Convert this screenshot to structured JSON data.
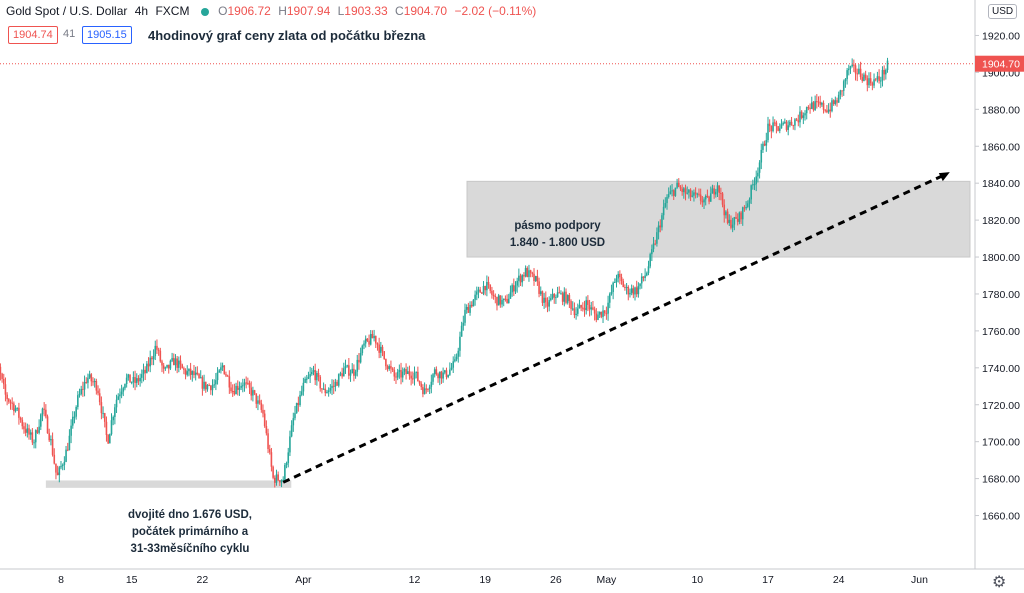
{
  "header": {
    "symbol": "Gold Spot / U.S. Dollar",
    "interval": "4h",
    "exchange": "FXCM",
    "open_label": "O",
    "open": "1906.72",
    "high_label": "H",
    "high": "1907.94",
    "low_label": "L",
    "low": "1903.33",
    "close_label": "C",
    "close": "1904.70",
    "change": "−2.02 (−0.11%)"
  },
  "quotes": {
    "sell": "1904.74",
    "spread": "41",
    "buy": "1905.15"
  },
  "subtitle": "4hodinový graf ceny zlata od počátku března",
  "currency_button": "USD",
  "colors": {
    "up": "#26a69a",
    "down": "#ef5350",
    "zone": "#d9d9d9",
    "price_line": "#ef5350"
  },
  "chart_data": {
    "type": "candlestick",
    "ylim": [
      1640,
      1930
    ],
    "y_ticks": [
      "1660.00",
      "1680.00",
      "1700.00",
      "1720.00",
      "1740.00",
      "1760.00",
      "1780.00",
      "1800.00",
      "1820.00",
      "1840.00",
      "1860.00",
      "1880.00",
      "1900.00",
      "1920.00"
    ],
    "x_ticks": [
      {
        "label": "8",
        "day": 8
      },
      {
        "label": "15",
        "day": 15
      },
      {
        "label": "22",
        "day": 22
      },
      {
        "label": "Apr",
        "day": 32
      },
      {
        "label": "12",
        "day": 43
      },
      {
        "label": "19",
        "day": 50
      },
      {
        "label": "26",
        "day": 57
      },
      {
        "label": "May",
        "day": 62
      },
      {
        "label": "10",
        "day": 71
      },
      {
        "label": "17",
        "day": 78
      },
      {
        "label": "24",
        "day": 85
      },
      {
        "label": "Jun",
        "day": 93
      }
    ],
    "last_price": "1904.70",
    "price_path": [
      [
        1.0,
        1728
      ],
      [
        1.8,
        1740
      ],
      [
        2.5,
        1725
      ],
      [
        3.5,
        1718
      ],
      [
        4.3,
        1708
      ],
      [
        5.3,
        1700
      ],
      [
        6.2,
        1718
      ],
      [
        7.0,
        1700
      ],
      [
        7.6,
        1680
      ],
      [
        8.6,
        1696
      ],
      [
        9.6,
        1722
      ],
      [
        10.6,
        1735
      ],
      [
        11.6,
        1730
      ],
      [
        12.6,
        1700
      ],
      [
        13.4,
        1722
      ],
      [
        14.4,
        1734
      ],
      [
        15.4,
        1732
      ],
      [
        16.4,
        1738
      ],
      [
        17.4,
        1752
      ],
      [
        18.2,
        1737
      ],
      [
        19.2,
        1744
      ],
      [
        20.2,
        1738
      ],
      [
        21.2,
        1736
      ],
      [
        22.2,
        1730
      ],
      [
        23.2,
        1731
      ],
      [
        24.0,
        1741
      ],
      [
        25.0,
        1728
      ],
      [
        26.0,
        1732
      ],
      [
        27.0,
        1726
      ],
      [
        28.0,
        1715
      ],
      [
        29.0,
        1680
      ],
      [
        30.0,
        1680
      ],
      [
        31.0,
        1712
      ],
      [
        32.0,
        1730
      ],
      [
        33.0,
        1738
      ],
      [
        34.0,
        1727
      ],
      [
        35.0,
        1730
      ],
      [
        36.0,
        1739
      ],
      [
        37.0,
        1738
      ],
      [
        38.0,
        1752
      ],
      [
        39.0,
        1757
      ],
      [
        40.0,
        1745
      ],
      [
        41.0,
        1735
      ],
      [
        42.0,
        1737
      ],
      [
        43.0,
        1737
      ],
      [
        44.0,
        1727
      ],
      [
        45.0,
        1738
      ],
      [
        46.0,
        1736
      ],
      [
        47.0,
        1742
      ],
      [
        48.0,
        1770
      ],
      [
        49.0,
        1778
      ],
      [
        50.0,
        1785
      ],
      [
        51.0,
        1777
      ],
      [
        52.0,
        1775
      ],
      [
        53.0,
        1786
      ],
      [
        54.0,
        1792
      ],
      [
        55.0,
        1787
      ],
      [
        56.0,
        1773
      ],
      [
        57.0,
        1780
      ],
      [
        58.0,
        1778
      ],
      [
        59.0,
        1770
      ],
      [
        60.0,
        1775
      ],
      [
        61.0,
        1768
      ],
      [
        62.0,
        1772
      ],
      [
        63.0,
        1790
      ],
      [
        64.0,
        1782
      ],
      [
        65.0,
        1782
      ],
      [
        66.0,
        1792
      ],
      [
        67.0,
        1812
      ],
      [
        68.0,
        1832
      ],
      [
        69.0,
        1838
      ],
      [
        70.0,
        1834
      ],
      [
        71.0,
        1832
      ],
      [
        72.0,
        1830
      ],
      [
        73.0,
        1840
      ],
      [
        74.0,
        1818
      ],
      [
        75.0,
        1820
      ],
      [
        76.0,
        1830
      ],
      [
        77.0,
        1848
      ],
      [
        78.0,
        1870
      ],
      [
        79.0,
        1870
      ],
      [
        80.0,
        1872
      ],
      [
        81.0,
        1875
      ],
      [
        82.0,
        1882
      ],
      [
        83.0,
        1882
      ],
      [
        84.0,
        1880
      ],
      [
        85.0,
        1886
      ],
      [
        86.0,
        1902
      ],
      [
        87.0,
        1900
      ],
      [
        88.0,
        1895
      ],
      [
        89.0,
        1896
      ],
      [
        90.0,
        1905
      ]
    ],
    "annotations": {
      "support_zone_label_1": "pásmo podpory",
      "support_zone_label_2": "1.840 - 1.800 USD",
      "support_zone": {
        "from_day": 48.2,
        "to_day": 98,
        "low": 1800,
        "high": 1841
      },
      "bottom_zone": {
        "from_day": 6.5,
        "to_day": 30.8,
        "low": 1675,
        "high": 1679
      },
      "trendline": {
        "from": [
          30.0,
          1678
        ],
        "to": [
          96,
          1846
        ]
      },
      "bottom_label_1": "dvojité dno 1.676 USD,",
      "bottom_label_2": "počátek primárního a",
      "bottom_label_3": "31-33měsíčního cyklu"
    }
  }
}
